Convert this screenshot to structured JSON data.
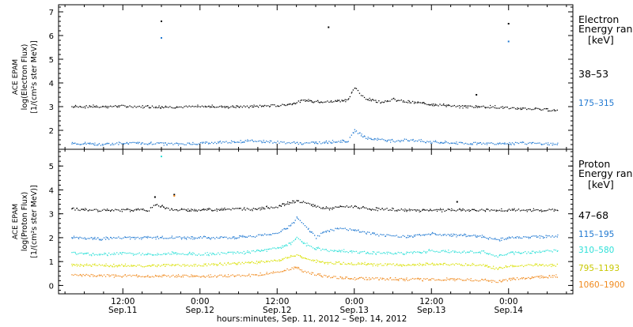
{
  "colors": {
    "background": "#ffffff",
    "axes": "#000000",
    "electron_38_53": "#000000",
    "electron_175_315": "#1f78d1",
    "proton_47_68": "#000000",
    "proton_115_195": "#1f78d1",
    "proton_310_580": "#2ee0d8",
    "proton_795_1193": "#d9e000",
    "proton_1060_1900": "#f08a1e"
  },
  "xaxis": {
    "tick_labels": [
      {
        "time": "12:00",
        "date": "Sep.11",
        "hours": 12
      },
      {
        "time": "0:00",
        "date": "Sep.12",
        "hours": 24
      },
      {
        "time": "12:00",
        "date": "Sep.12",
        "hours": 36
      },
      {
        "time": "0:00",
        "date": "Sep.13",
        "hours": 48
      },
      {
        "time": "12:00",
        "date": "Sep.13",
        "hours": 60
      },
      {
        "time": "0:00",
        "date": "Sep.14",
        "hours": 72
      }
    ],
    "label": "hours:minutes, Sep. 11, 2012 – Sep. 14, 2012"
  },
  "chart_data": [
    {
      "type": "scatter",
      "panel": "electron",
      "ylabel_lines": [
        "ACE EPAM",
        "log(Electron Flux)",
        "[1/(cm²s ster MeV)]"
      ],
      "legend_title": [
        "Electron",
        "Energy ran",
        "[keV]"
      ],
      "legend_placement": "right",
      "xlim_hours": [
        2,
        82
      ],
      "ylim": [
        1.2,
        7.3
      ],
      "yticks": [
        "2",
        "3",
        "4",
        "5",
        "6",
        "7"
      ],
      "yticks_values": [
        2,
        3,
        4,
        5,
        6,
        7
      ],
      "series": [
        {
          "name": "38–53",
          "color_key": "electron_38_53",
          "points": [
            [
              4,
              3.0
            ],
            [
              8,
              3.0
            ],
            [
              12,
              3.02
            ],
            [
              16,
              3.0
            ],
            [
              20,
              2.98
            ],
            [
              24,
              3.0
            ],
            [
              28,
              3.0
            ],
            [
              32,
              3.0
            ],
            [
              36,
              3.05
            ],
            [
              38,
              3.1
            ],
            [
              40,
              3.25
            ],
            [
              42,
              3.22
            ],
            [
              44,
              3.2
            ],
            [
              46,
              3.25
            ],
            [
              47,
              3.3
            ],
            [
              48,
              3.8
            ],
            [
              49,
              3.5
            ],
            [
              50,
              3.3
            ],
            [
              52,
              3.2
            ],
            [
              54,
              3.3
            ],
            [
              56,
              3.2
            ],
            [
              60,
              3.1
            ],
            [
              64,
              3.0
            ],
            [
              68,
              3.0
            ],
            [
              72,
              2.95
            ],
            [
              76,
              2.9
            ],
            [
              79,
              2.85
            ]
          ],
          "outliers": [
            [
              18,
              6.6
            ],
            [
              44,
              6.35
            ],
            [
              72,
              6.5
            ],
            [
              67,
              3.5
            ]
          ]
        },
        {
          "name": "175–315",
          "color_key": "electron_175_315",
          "points": [
            [
              4,
              1.45
            ],
            [
              8,
              1.4
            ],
            [
              12,
              1.45
            ],
            [
              16,
              1.45
            ],
            [
              20,
              1.42
            ],
            [
              24,
              1.45
            ],
            [
              28,
              1.5
            ],
            [
              32,
              1.55
            ],
            [
              36,
              1.5
            ],
            [
              40,
              1.45
            ],
            [
              44,
              1.5
            ],
            [
              47,
              1.55
            ],
            [
              48,
              2.0
            ],
            [
              49,
              1.8
            ],
            [
              50,
              1.65
            ],
            [
              52,
              1.6
            ],
            [
              54,
              1.55
            ],
            [
              56,
              1.6
            ],
            [
              60,
              1.5
            ],
            [
              64,
              1.45
            ],
            [
              68,
              1.45
            ],
            [
              72,
              1.45
            ],
            [
              76,
              1.45
            ],
            [
              79,
              1.42
            ]
          ],
          "outliers": [
            [
              18,
              5.9
            ],
            [
              72,
              5.75
            ]
          ]
        }
      ]
    },
    {
      "type": "scatter",
      "panel": "proton",
      "ylabel_lines": [
        "ACE EPAM",
        "log(Proton Flux)",
        "[1/(cm²s ster MeV)]"
      ],
      "legend_title": [
        "Proton",
        "Energy ran",
        "[keV]"
      ],
      "legend_placement": "right",
      "xlim_hours": [
        2,
        82
      ],
      "ylim": [
        -0.35,
        5.7
      ],
      "yticks": [
        "0",
        "1",
        "2",
        "3",
        "4",
        "5"
      ],
      "yticks_values": [
        0,
        1,
        2,
        3,
        4,
        5
      ],
      "series": [
        {
          "name": "47–68",
          "color_key": "proton_47_68",
          "points": [
            [
              4,
              3.2
            ],
            [
              8,
              3.15
            ],
            [
              12,
              3.15
            ],
            [
              16,
              3.15
            ],
            [
              17,
              3.4
            ],
            [
              18,
              3.3
            ],
            [
              19,
              3.2
            ],
            [
              20,
              3.15
            ],
            [
              24,
              3.15
            ],
            [
              28,
              3.2
            ],
            [
              32,
              3.2
            ],
            [
              36,
              3.3
            ],
            [
              39,
              3.55
            ],
            [
              41,
              3.4
            ],
            [
              42,
              3.3
            ],
            [
              44,
              3.2
            ],
            [
              46,
              3.3
            ],
            [
              48,
              3.3
            ],
            [
              50,
              3.2
            ],
            [
              52,
              3.2
            ],
            [
              56,
              3.15
            ],
            [
              60,
              3.15
            ],
            [
              64,
              3.15
            ],
            [
              68,
              3.15
            ],
            [
              72,
              3.15
            ],
            [
              76,
              3.15
            ],
            [
              79,
              3.15
            ]
          ],
          "outliers": [
            [
              17,
              3.7
            ],
            [
              64,
              3.5
            ],
            [
              20,
              3.8
            ]
          ]
        },
        {
          "name": "115–195",
          "color_key": "proton_115_195",
          "points": [
            [
              4,
              2.0
            ],
            [
              8,
              1.95
            ],
            [
              12,
              2.0
            ],
            [
              16,
              2.0
            ],
            [
              20,
              2.0
            ],
            [
              24,
              2.0
            ],
            [
              28,
              2.0
            ],
            [
              32,
              2.05
            ],
            [
              36,
              2.2
            ],
            [
              38,
              2.5
            ],
            [
              39,
              2.85
            ],
            [
              40,
              2.6
            ],
            [
              41,
              2.3
            ],
            [
              42,
              2.0
            ],
            [
              43,
              2.2
            ],
            [
              44,
              2.3
            ],
            [
              46,
              2.4
            ],
            [
              48,
              2.3
            ],
            [
              50,
              2.2
            ],
            [
              52,
              2.1
            ],
            [
              56,
              2.05
            ],
            [
              60,
              2.15
            ],
            [
              64,
              2.1
            ],
            [
              68,
              2.05
            ],
            [
              70,
              1.9
            ],
            [
              72,
              2.0
            ],
            [
              76,
              2.05
            ],
            [
              79,
              2.05
            ]
          ],
          "outliers": []
        },
        {
          "name": "310–580",
          "color_key": "proton_310_580",
          "points": [
            [
              4,
              1.35
            ],
            [
              8,
              1.3
            ],
            [
              12,
              1.35
            ],
            [
              16,
              1.3
            ],
            [
              20,
              1.35
            ],
            [
              24,
              1.3
            ],
            [
              28,
              1.35
            ],
            [
              32,
              1.4
            ],
            [
              36,
              1.55
            ],
            [
              38,
              1.75
            ],
            [
              39,
              2.0
            ],
            [
              40,
              1.75
            ],
            [
              42,
              1.55
            ],
            [
              44,
              1.45
            ],
            [
              46,
              1.45
            ],
            [
              48,
              1.4
            ],
            [
              52,
              1.35
            ],
            [
              56,
              1.35
            ],
            [
              60,
              1.45
            ],
            [
              64,
              1.4
            ],
            [
              68,
              1.4
            ],
            [
              70,
              1.2
            ],
            [
              72,
              1.35
            ],
            [
              76,
              1.4
            ],
            [
              79,
              1.45
            ]
          ],
          "outliers": [
            [
              18,
              5.4
            ]
          ]
        },
        {
          "name": "795–1193",
          "color_key": "proton_795_1193",
          "points": [
            [
              4,
              0.85
            ],
            [
              8,
              0.85
            ],
            [
              12,
              0.85
            ],
            [
              16,
              0.82
            ],
            [
              20,
              0.85
            ],
            [
              24,
              0.85
            ],
            [
              28,
              0.9
            ],
            [
              32,
              0.95
            ],
            [
              36,
              1.05
            ],
            [
              38,
              1.2
            ],
            [
              39,
              1.3
            ],
            [
              40,
              1.15
            ],
            [
              42,
              1.0
            ],
            [
              44,
              0.95
            ],
            [
              48,
              0.9
            ],
            [
              52,
              0.88
            ],
            [
              56,
              0.85
            ],
            [
              60,
              0.9
            ],
            [
              64,
              0.88
            ],
            [
              68,
              0.85
            ],
            [
              70,
              0.7
            ],
            [
              72,
              0.82
            ],
            [
              76,
              0.85
            ],
            [
              79,
              0.85
            ]
          ],
          "outliers": []
        },
        {
          "name": "1060–1900",
          "color_key": "proton_1060_1900",
          "points": [
            [
              4,
              0.45
            ],
            [
              8,
              0.42
            ],
            [
              12,
              0.4
            ],
            [
              16,
              0.38
            ],
            [
              20,
              0.4
            ],
            [
              24,
              0.38
            ],
            [
              28,
              0.4
            ],
            [
              32,
              0.42
            ],
            [
              36,
              0.55
            ],
            [
              38,
              0.7
            ],
            [
              39,
              0.75
            ],
            [
              40,
              0.6
            ],
            [
              42,
              0.45
            ],
            [
              44,
              0.35
            ],
            [
              48,
              0.3
            ],
            [
              52,
              0.28
            ],
            [
              56,
              0.25
            ],
            [
              60,
              0.25
            ],
            [
              64,
              0.25
            ],
            [
              68,
              0.22
            ],
            [
              70,
              0.15
            ],
            [
              72,
              0.25
            ],
            [
              76,
              0.35
            ],
            [
              79,
              0.38
            ]
          ],
          "outliers": [
            [
              20,
              3.75
            ]
          ]
        }
      ]
    }
  ]
}
